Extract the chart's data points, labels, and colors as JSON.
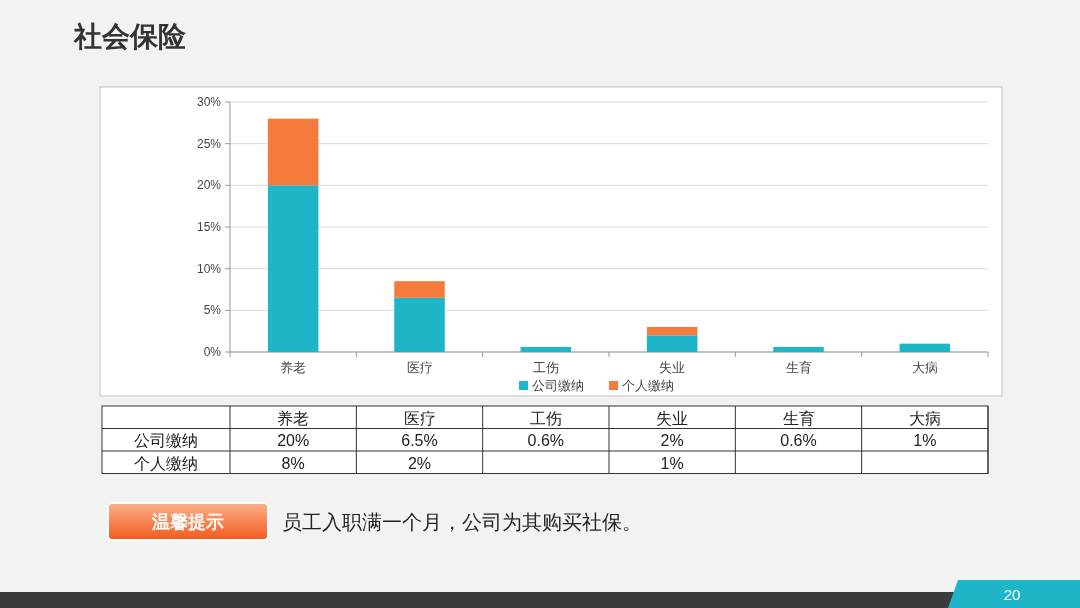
{
  "chart_data": {
    "type": "bar",
    "title": "社会保险",
    "stacked": true,
    "grid": "y",
    "legend": "bottom",
    "data_labels": false,
    "categories": [
      "养老",
      "医疗",
      "工伤",
      "失业",
      "生育",
      "大病"
    ],
    "ylim": [
      0,
      30
    ],
    "yticks": [
      {
        "value": 0,
        "label": "0%"
      },
      {
        "value": 5,
        "label": "5%"
      },
      {
        "value": 10,
        "label": "10%"
      },
      {
        "value": 15,
        "label": "15%"
      },
      {
        "value": 20,
        "label": "20%"
      },
      {
        "value": 25,
        "label": "25%"
      },
      {
        "value": 30,
        "label": "30%"
      }
    ],
    "series": [
      {
        "name": "公司缴纳",
        "color": "#1fb5c9",
        "values": [
          20,
          6.5,
          0.6,
          2,
          0.6,
          1
        ],
        "value_labels": [
          "20%",
          "6.5%",
          "0.6%",
          "2%",
          "0.6%",
          "1%"
        ]
      },
      {
        "name": "个人缴纳",
        "color": "#f47b3b",
        "values": [
          8,
          2,
          null,
          1,
          null,
          null
        ],
        "value_labels": [
          "8%",
          "2%",
          null,
          "1%",
          null,
          null
        ]
      }
    ],
    "annotations": [
      "温馨提示",
      "员工入职满一个月，公司为其购买社保。",
      "20"
    ]
  }
}
